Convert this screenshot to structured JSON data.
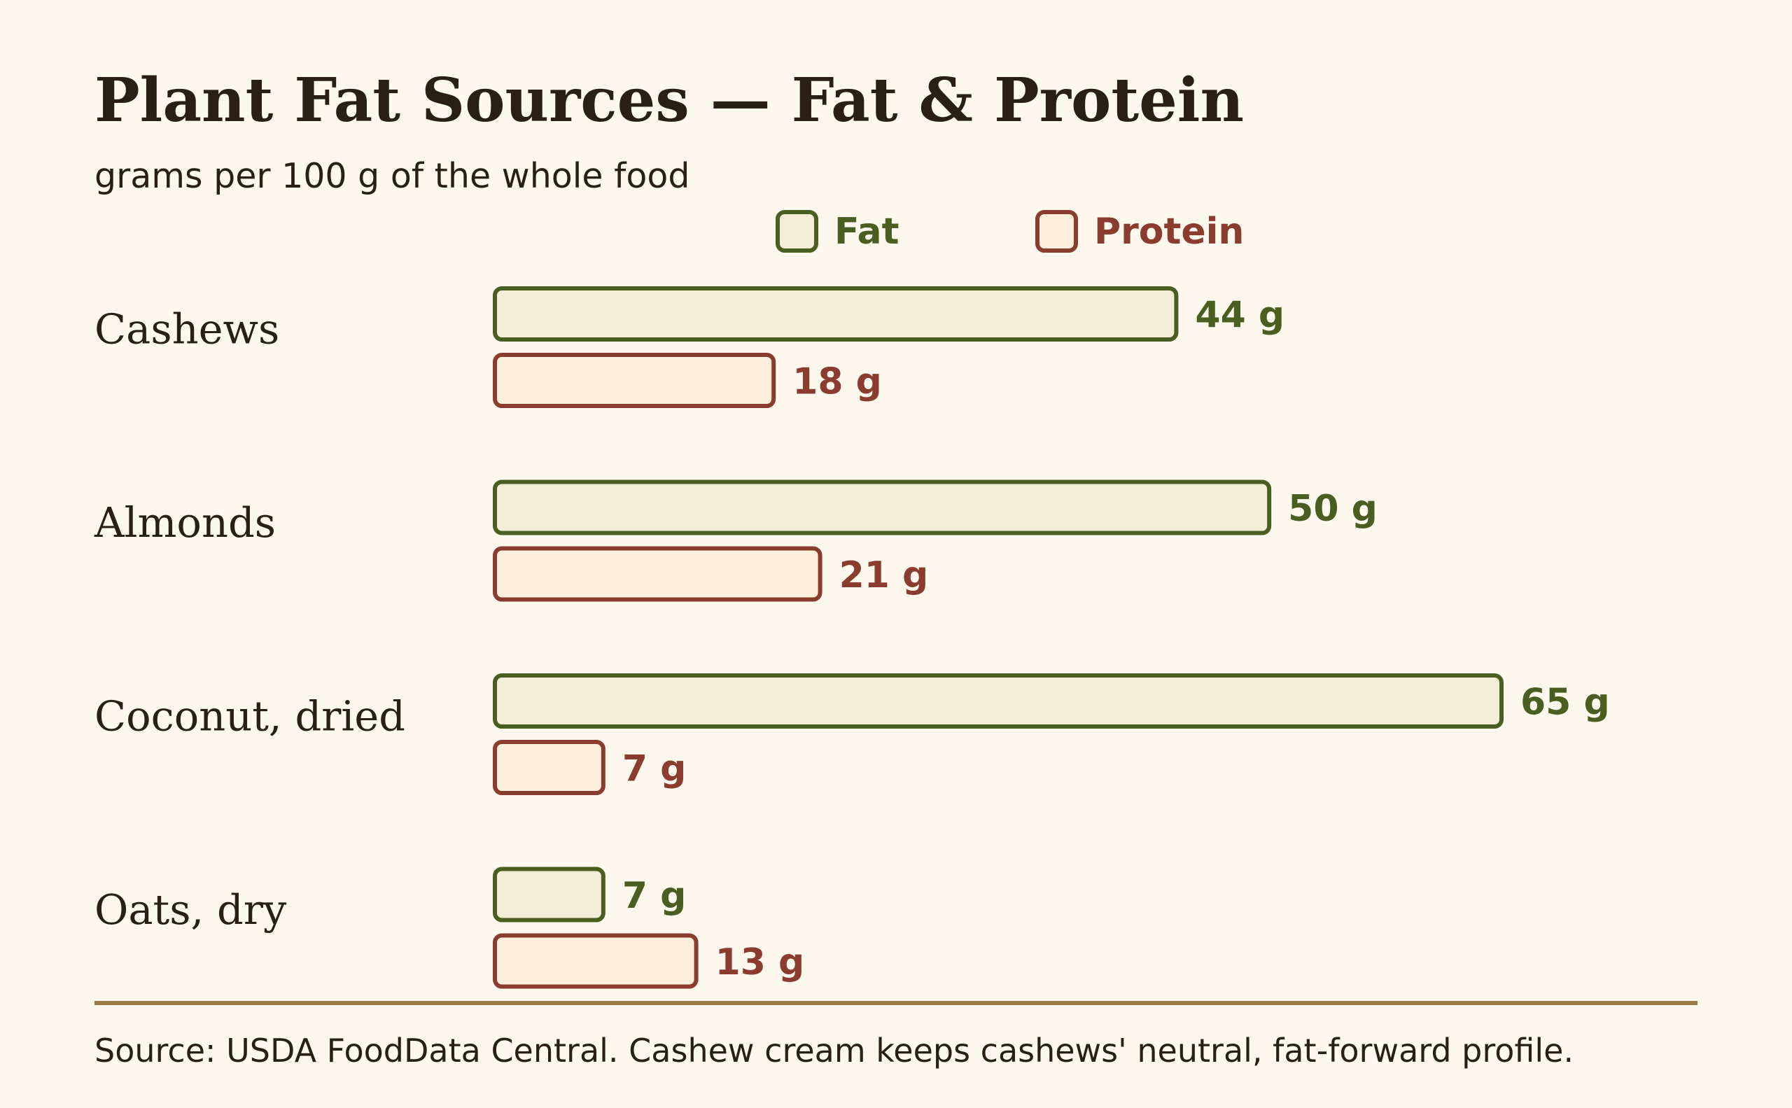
{
  "colors": {
    "background": "#fcf8ee",
    "text": "#2a1f14",
    "fat": "#4a5e22",
    "fat_fill": "#f4eed8",
    "protein": "#8a3c2e",
    "protein_fill": "#fbefdc",
    "rule": "#9a7b45"
  },
  "chart_data": {
    "type": "bar",
    "orientation": "horizontal",
    "title": "Plant Fat Sources — Fat & Protein",
    "subtitle": "grams per 100 g of the whole food",
    "categories": [
      "Cashews",
      "Almonds",
      "Coconut, dried",
      "Oats, dry"
    ],
    "series": [
      {
        "name": "Fat",
        "values": [
          44,
          50,
          65,
          7
        ],
        "labels": [
          "44 g",
          "50 g",
          "65 g",
          "7 g"
        ]
      },
      {
        "name": "Protein",
        "values": [
          18,
          21,
          7,
          13
        ],
        "labels": [
          "18 g",
          "21 g",
          "7 g",
          "13 g"
        ]
      }
    ],
    "legend_position": "top",
    "grid": false,
    "xlim": [
      0,
      65
    ],
    "source": "Source: USDA FoodData Central. Cashew cream keeps cashews' neutral, fat-forward profile."
  }
}
